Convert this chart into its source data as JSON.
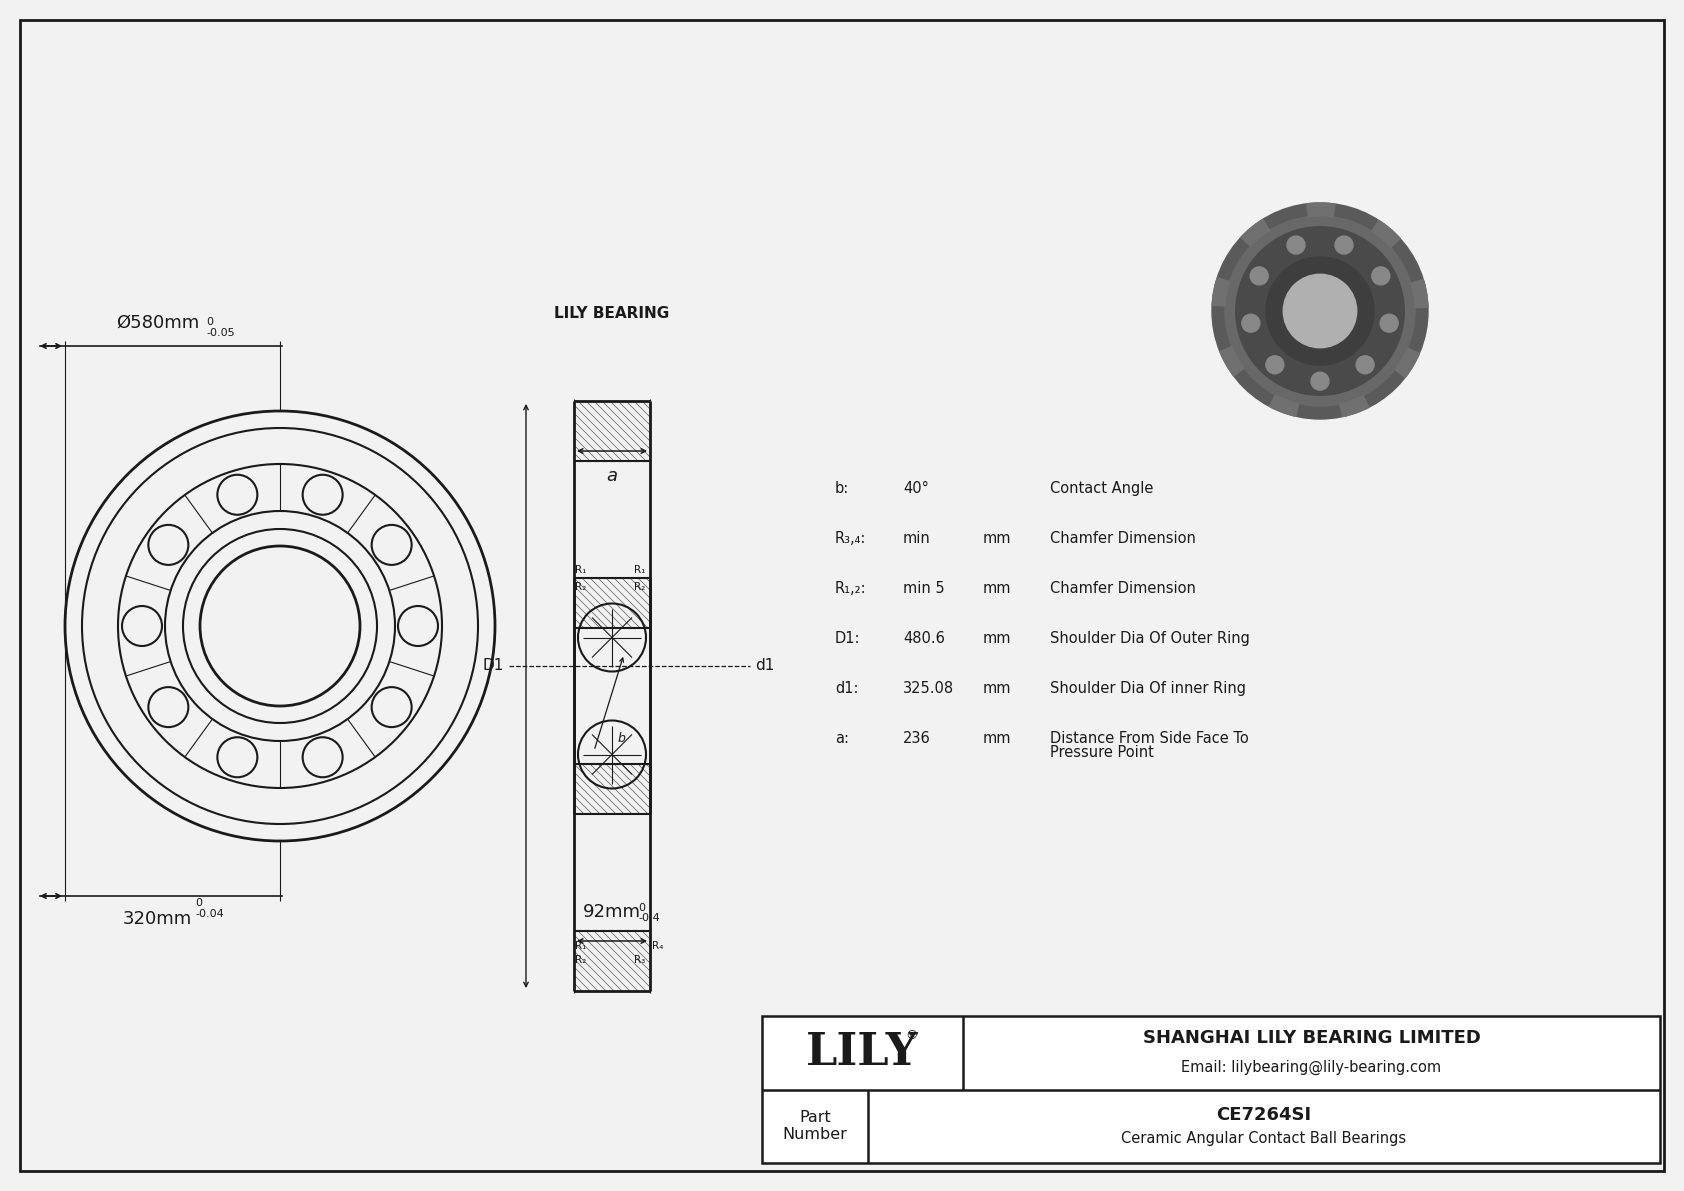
{
  "bg_color": "#f2f2f2",
  "line_color": "#1a1a1a",
  "outer_diameter_label": "Ø580mm",
  "outer_tol_upper": "0",
  "outer_tol_lower": "-0.05",
  "inner_diameter_label": "320mm",
  "inner_tol_upper": "0",
  "inner_tol_lower": "-0.04",
  "width_label": "92mm",
  "width_tol_upper": "0",
  "width_tol_lower": "-0.4",
  "specs": [
    {
      "param": "b:",
      "value": "40°",
      "unit": "",
      "desc": "Contact Angle"
    },
    {
      "param": "R₃,₄:",
      "value": "min",
      "unit": "mm",
      "desc": "Chamfer Dimension"
    },
    {
      "param": "R₁,₂:",
      "value": "min 5",
      "unit": "mm",
      "desc": "Chamfer Dimension"
    },
    {
      "param": "D1:",
      "value": "480.6",
      "unit": "mm",
      "desc": "Shoulder Dia Of Outer Ring"
    },
    {
      "param": "d1:",
      "value": "325.08",
      "unit": "mm",
      "desc": "Shoulder Dia Of inner Ring"
    },
    {
      "param": "a:",
      "value": "236",
      "unit": "mm",
      "desc": "Distance From Side Face To\nPressure Point"
    }
  ],
  "company": "SHANGHAI LILY BEARING LIMITED",
  "email": "Email: lilybearing@lily-bearing.com",
  "part_number": "CE7264SI",
  "part_type": "Ceramic Angular Contact Ball Bearings",
  "logo_text": "LILY",
  "part_label": "Part\nNumber",
  "lily_bearing_label": "LILY BEARING",
  "a_label": "a",
  "D1_label": "D1",
  "d1_label": "d1"
}
